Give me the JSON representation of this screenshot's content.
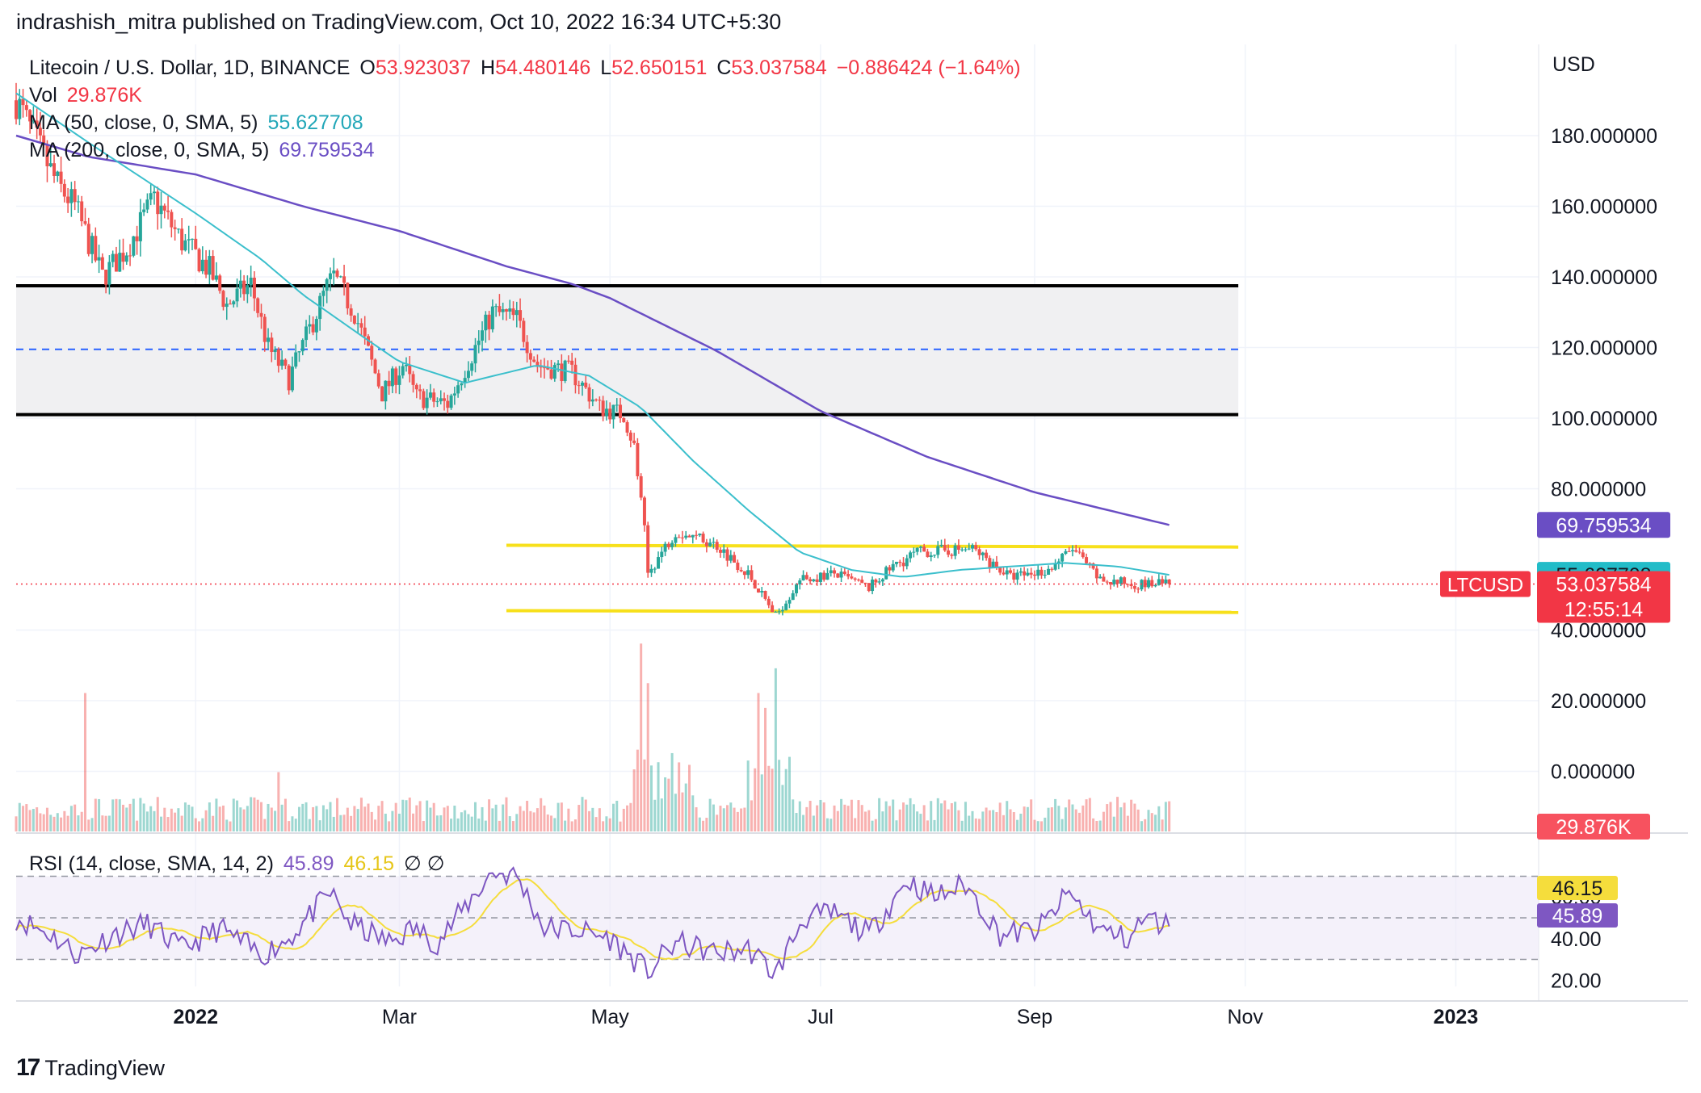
{
  "header": {
    "published_by": "indrashish_mitra published on TradingView.com, Oct 10, 2022 16:34 UTC+5:30"
  },
  "legend": {
    "symbol": "Litecoin / U.S. Dollar, 1D, BINANCE",
    "open_label": "O",
    "open": "53.923037",
    "high_label": "H",
    "high": "54.480146",
    "low_label": "L",
    "low": "52.650151",
    "close_label": "C",
    "close": "53.037584",
    "change": "−0.886424 (−1.64%)",
    "vol_label": "Vol",
    "vol": "29.876K",
    "ma50_label": "MA (50, close, 0, SMA, 5)",
    "ma50": "55.627708",
    "ma200_label": "MA (200, close, 0, SMA, 5)",
    "ma200": "69.759534"
  },
  "footer": {
    "logo": "17",
    "brand": "TradingView"
  },
  "colors": {
    "up": "#26a69a",
    "down": "#ef5350",
    "ma50": "#3bbfcc",
    "ma200": "#6a4ec4",
    "rsi": "#7e57c2",
    "rsi_ma": "#f5dd3c",
    "yellow_line": "#f7e01b",
    "zone": "#f0f0f2"
  },
  "chart_data": {
    "type": "candlestick",
    "currency_label": "USD",
    "symbol_tag": "LTCUSD",
    "countdown": "12:55:14",
    "price_axis_ticks": [
      "180.000000",
      "160.000000",
      "140.000000",
      "120.000000",
      "100.000000",
      "80.000000",
      "40.000000",
      "20.000000",
      "0.000000"
    ],
    "price_axis_values": [
      180,
      160,
      140,
      120,
      100,
      80,
      40,
      20,
      0
    ],
    "x_labels": [
      "2022",
      "Mar",
      "May",
      "Jul",
      "Sep",
      "Nov",
      "2023"
    ],
    "x_label_dates": [
      "2022-01-01",
      "2022-03-01",
      "2022-05-01",
      "2022-07-01",
      "2022-09-01",
      "2022-11-01",
      "2023-01-01"
    ],
    "date_range": [
      "2021-11-10",
      "2023-01-25"
    ],
    "price_range": [
      40,
      193
    ],
    "badges": {
      "ma200": {
        "text": "69.759534",
        "value": 69.759534
      },
      "ma50": {
        "text": "55.627708",
        "value": 55.627708
      },
      "close": {
        "text": "53.037584",
        "value": 53.037584
      },
      "volume": {
        "text": "29.876K"
      }
    },
    "zones": [
      {
        "name": "resistance-zone",
        "top": 137.5,
        "bottom": 101.0,
        "mid": 119.5,
        "from": "2021-11-10",
        "to": "2022-10-30"
      }
    ],
    "yellow_lines": [
      {
        "from": "2022-04-01",
        "to": "2022-10-30",
        "y1": 64.0,
        "y2": 63.5
      },
      {
        "from": "2022-04-01",
        "to": "2022-10-30",
        "y1": 45.5,
        "y2": 45.0
      }
    ],
    "price_anchors": [
      [
        "2021-11-10",
        190
      ],
      [
        "2021-11-16",
        178
      ],
      [
        "2021-11-22",
        166
      ],
      [
        "2021-11-27",
        160
      ],
      [
        "2021-12-05",
        140
      ],
      [
        "2021-12-12",
        148
      ],
      [
        "2021-12-20",
        162
      ],
      [
        "2021-12-28",
        150
      ],
      [
        "2022-01-05",
        142
      ],
      [
        "2022-01-10",
        132
      ],
      [
        "2022-01-17",
        138
      ],
      [
        "2022-01-22",
        120
      ],
      [
        "2022-01-28",
        111
      ],
      [
        "2022-02-08",
        137
      ],
      [
        "2022-02-10",
        140
      ],
      [
        "2022-02-16",
        130
      ],
      [
        "2022-02-24",
        107
      ],
      [
        "2022-03-02",
        115
      ],
      [
        "2022-03-06",
        106
      ],
      [
        "2022-03-15",
        104
      ],
      [
        "2022-03-28",
        130
      ],
      [
        "2022-04-04",
        128
      ],
      [
        "2022-04-10",
        115
      ],
      [
        "2022-04-20",
        113
      ],
      [
        "2022-04-28",
        103
      ],
      [
        "2022-05-05",
        101
      ],
      [
        "2022-05-08",
        92
      ],
      [
        "2022-05-11",
        68
      ],
      [
        "2022-05-12",
        56
      ],
      [
        "2022-05-20",
        68
      ],
      [
        "2022-06-01",
        64
      ],
      [
        "2022-06-10",
        56
      ],
      [
        "2022-06-18",
        44
      ],
      [
        "2022-06-25",
        54
      ],
      [
        "2022-07-05",
        56
      ],
      [
        "2022-07-15",
        52
      ],
      [
        "2022-07-22",
        58
      ],
      [
        "2022-07-29",
        62
      ],
      [
        "2022-08-14",
        63
      ],
      [
        "2022-08-25",
        55
      ],
      [
        "2022-09-05",
        57
      ],
      [
        "2022-09-12",
        63
      ],
      [
        "2022-09-20",
        54
      ],
      [
        "2022-10-01",
        53
      ],
      [
        "2022-10-10",
        53.04
      ]
    ],
    "ma50_points": [
      [
        "2021-11-10",
        192
      ],
      [
        "2021-12-01",
        178
      ],
      [
        "2022-01-01",
        158
      ],
      [
        "2022-01-20",
        145
      ],
      [
        "2022-02-01",
        135
      ],
      [
        "2022-02-20",
        122
      ],
      [
        "2022-03-01",
        116
      ],
      [
        "2022-03-20",
        110
      ],
      [
        "2022-04-10",
        115
      ],
      [
        "2022-04-25",
        112
      ],
      [
        "2022-05-10",
        103
      ],
      [
        "2022-05-25",
        88
      ],
      [
        "2022-06-10",
        74
      ],
      [
        "2022-06-25",
        62
      ],
      [
        "2022-07-10",
        57
      ],
      [
        "2022-07-25",
        55
      ],
      [
        "2022-08-10",
        57
      ],
      [
        "2022-08-25",
        58
      ],
      [
        "2022-09-10",
        59
      ],
      [
        "2022-09-25",
        58
      ],
      [
        "2022-10-10",
        55.63
      ]
    ],
    "ma200_points": [
      [
        "2021-11-10",
        180
      ],
      [
        "2021-12-01",
        174
      ],
      [
        "2022-01-01",
        169
      ],
      [
        "2022-02-01",
        160
      ],
      [
        "2022-03-01",
        153
      ],
      [
        "2022-04-01",
        143
      ],
      [
        "2022-04-20",
        138
      ],
      [
        "2022-05-01",
        134
      ],
      [
        "2022-06-01",
        119
      ],
      [
        "2022-07-01",
        102
      ],
      [
        "2022-08-01",
        89
      ],
      [
        "2022-09-01",
        79
      ],
      [
        "2022-10-10",
        69.76
      ]
    ],
    "volume_spikes": [
      [
        "2021-11-30",
        28
      ],
      [
        "2022-01-25",
        12
      ],
      [
        "2022-05-10",
        38
      ],
      [
        "2022-05-12",
        30
      ],
      [
        "2022-06-13",
        28
      ],
      [
        "2022-06-18",
        33
      ],
      [
        "2022-06-15",
        25
      ]
    ],
    "rsi": {
      "label": "RSI (14, close, SMA, 14, 2)",
      "value": "45.89",
      "ma_value": "46.15",
      "extra": "∅  ∅",
      "ticks": [
        "60.00",
        "40.00",
        "20.00"
      ],
      "tick_values": [
        60,
        40,
        20
      ],
      "range": [
        17,
        83
      ],
      "upper_band": 70,
      "mid_band": 50,
      "lower_band": 30,
      "anchors": [
        [
          "2021-11-10",
          50
        ],
        [
          "2021-11-20",
          42
        ],
        [
          "2021-11-28",
          32
        ],
        [
          "2021-12-08",
          42
        ],
        [
          "2021-12-18",
          47
        ],
        [
          "2021-12-28",
          35
        ],
        [
          "2022-01-08",
          45
        ],
        [
          "2022-01-20",
          32
        ],
        [
          "2022-01-28",
          40
        ],
        [
          "2022-02-09",
          62
        ],
        [
          "2022-02-15",
          47
        ],
        [
          "2022-02-26",
          38
        ],
        [
          "2022-03-05",
          45
        ],
        [
          "2022-03-12",
          38
        ],
        [
          "2022-03-28",
          72
        ],
        [
          "2022-04-04",
          70
        ],
        [
          "2022-04-12",
          45
        ],
        [
          "2022-04-22",
          44
        ],
        [
          "2022-05-01",
          40
        ],
        [
          "2022-05-12",
          24
        ],
        [
          "2022-05-20",
          38
        ],
        [
          "2022-06-01",
          33
        ],
        [
          "2022-06-10",
          35
        ],
        [
          "2022-06-18",
          23
        ],
        [
          "2022-06-26",
          50
        ],
        [
          "2022-07-05",
          52
        ],
        [
          "2022-07-15",
          42
        ],
        [
          "2022-07-26",
          68
        ],
        [
          "2022-08-03",
          60
        ],
        [
          "2022-08-12",
          66
        ],
        [
          "2022-08-22",
          42
        ],
        [
          "2022-09-02",
          44
        ],
        [
          "2022-09-11",
          62
        ],
        [
          "2022-09-20",
          44
        ],
        [
          "2022-09-28",
          40
        ],
        [
          "2022-10-03",
          50
        ],
        [
          "2022-10-10",
          45.89
        ]
      ]
    }
  }
}
